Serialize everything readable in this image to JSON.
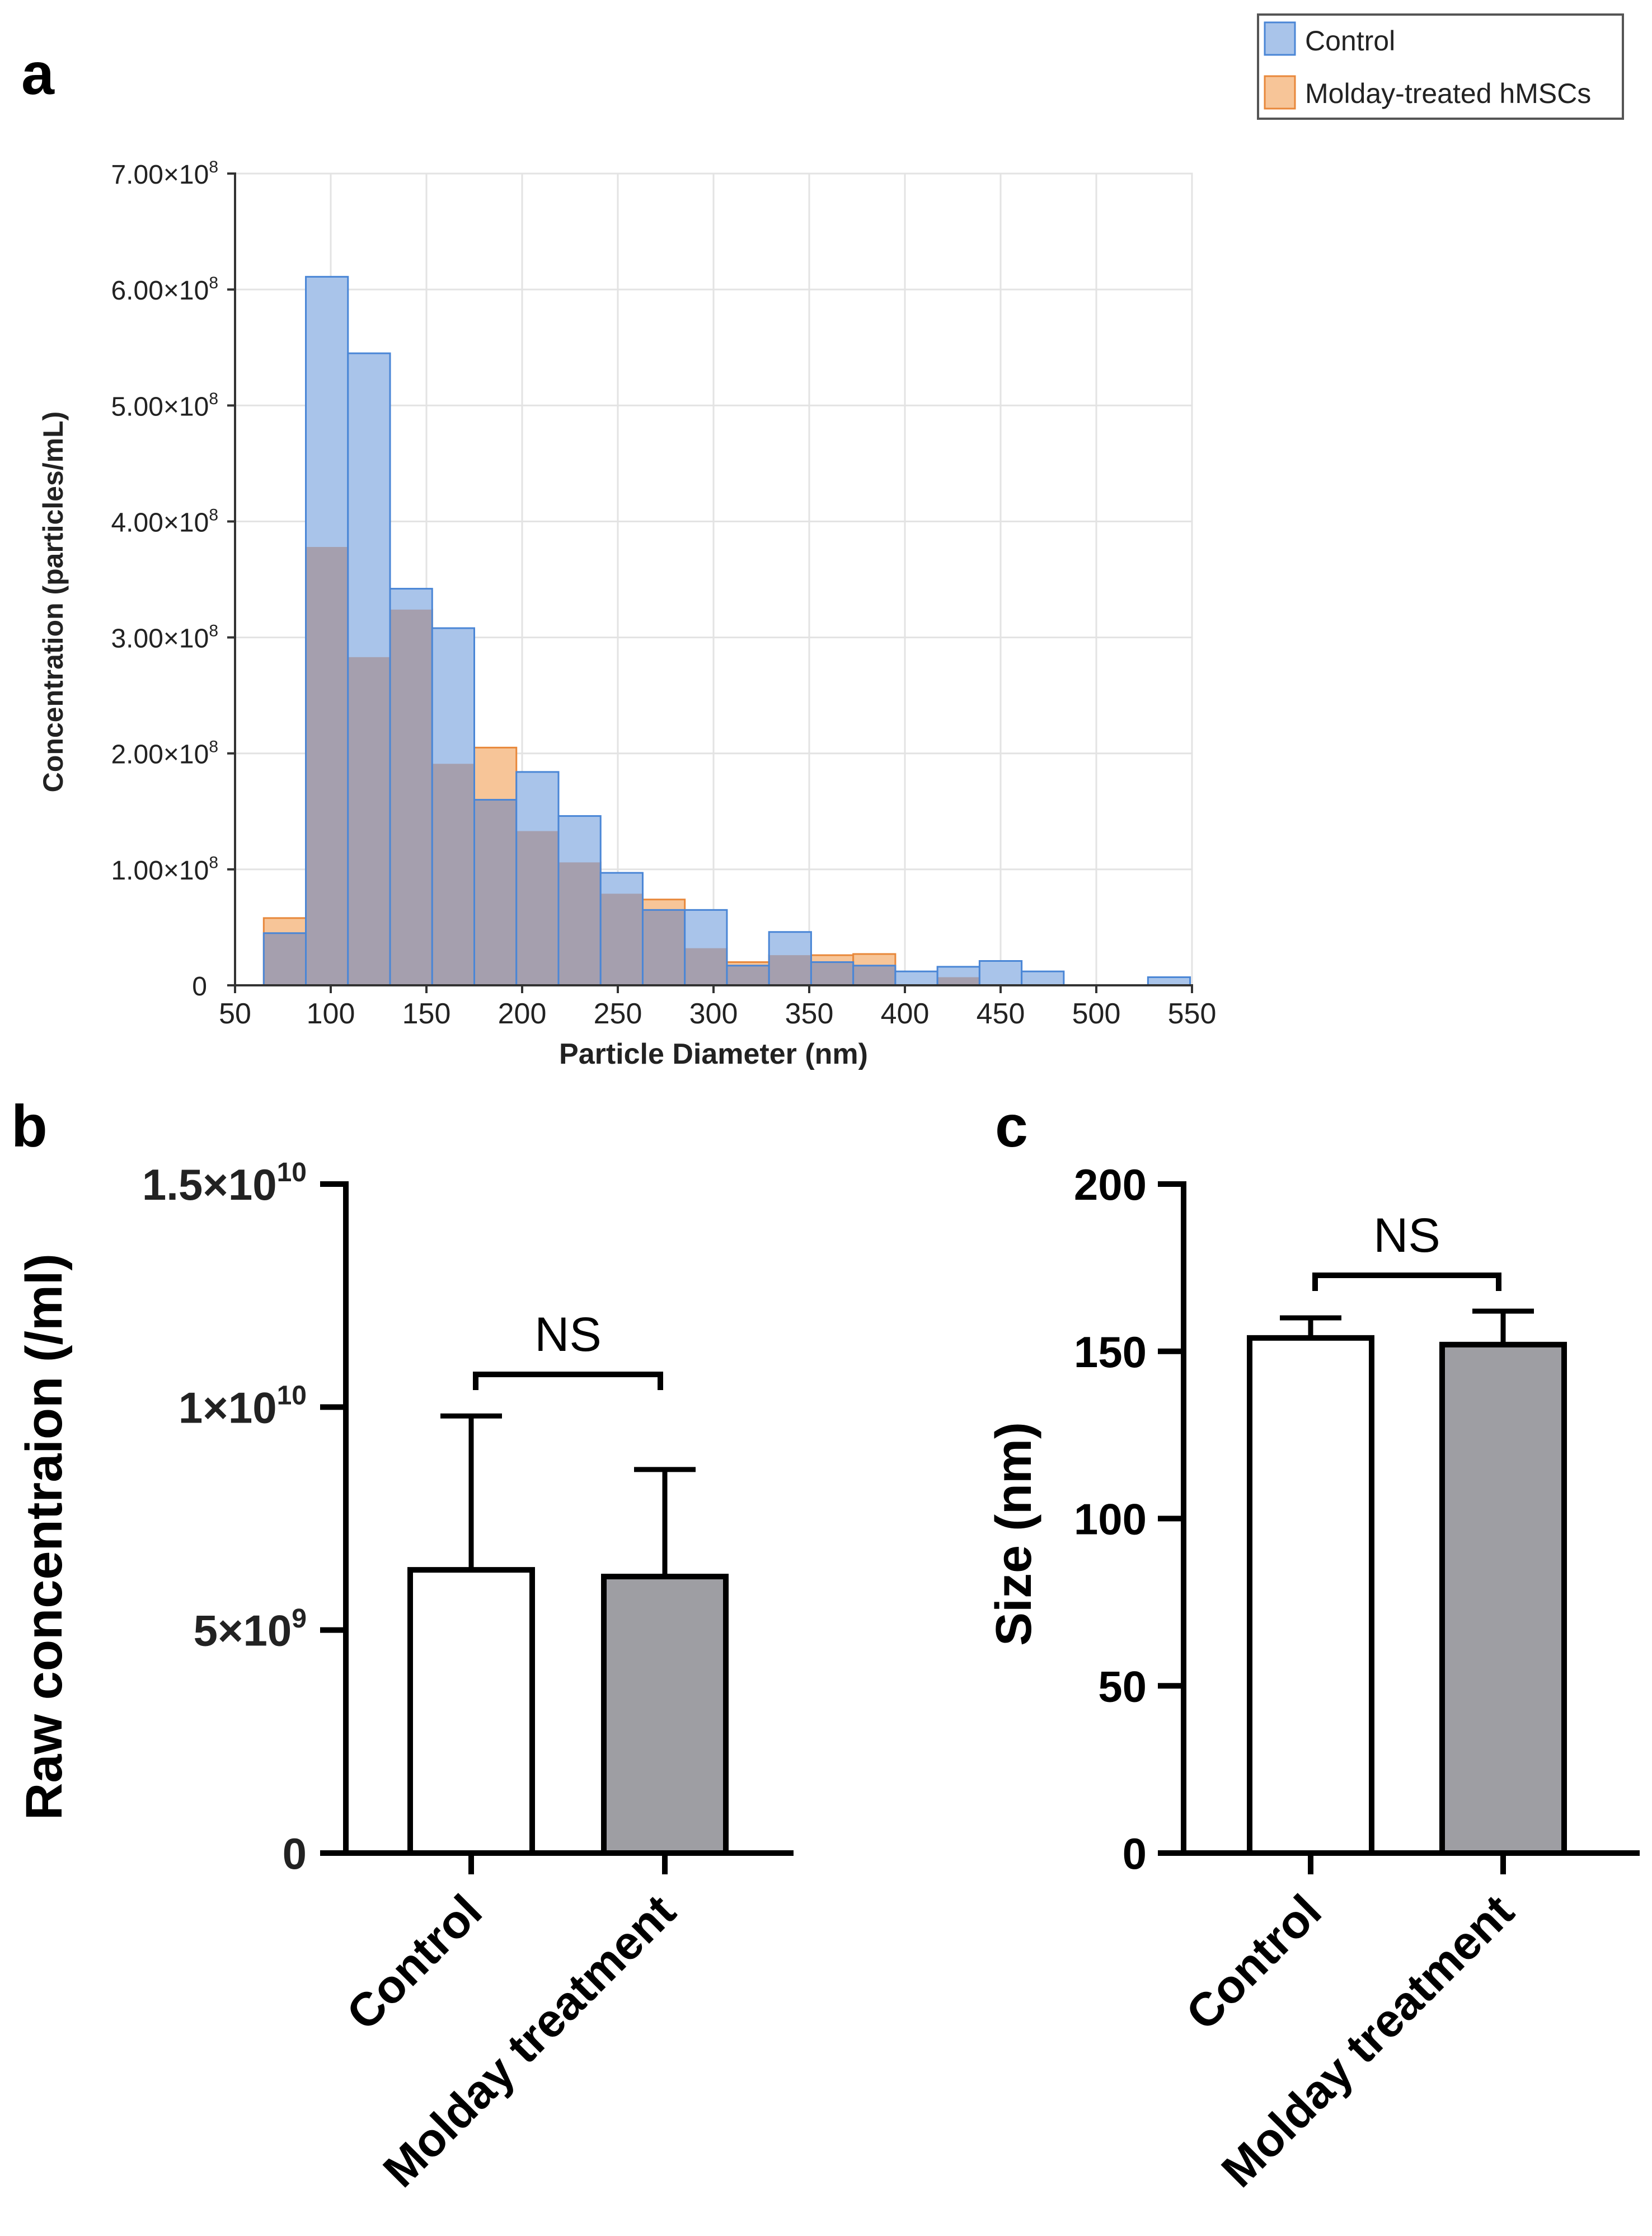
{
  "panel_labels": {
    "a": "a",
    "b": "b",
    "c": "c"
  },
  "colors": {
    "control_fill": "#a9c4ea",
    "control_stroke": "#4a86d6",
    "molday_fill": "#f7c598",
    "molday_stroke": "#e8883b",
    "overlap_fill": "#a59fae",
    "grid": "#e3e3e3",
    "bar_gray": "#9e9ea3",
    "axis": "#000000"
  },
  "chart_data": [
    {
      "id": "a",
      "type": "bar",
      "subtype": "overlaid-histogram",
      "title": "",
      "xlabel": "Particle Diameter (nm)",
      "ylabel": "Concentration (particles/mL)",
      "xlim": [
        50,
        550
      ],
      "ylim": [
        0,
        700000000
      ],
      "grid": true,
      "legend_position": "top-right",
      "x_ticks": [
        {
          "value": 50,
          "label": "50"
        },
        {
          "value": 100,
          "label": "100"
        },
        {
          "value": 150,
          "label": "150"
        },
        {
          "value": 200,
          "label": "200"
        },
        {
          "value": 250,
          "label": "250"
        },
        {
          "value": 300,
          "label": "300"
        },
        {
          "value": 350,
          "label": "350"
        },
        {
          "value": 400,
          "label": "400"
        },
        {
          "value": 450,
          "label": "450"
        },
        {
          "value": 500,
          "label": "500"
        },
        {
          "value": 550,
          "label": "550"
        }
      ],
      "y_ticks": [
        {
          "value": 0,
          "base": "0",
          "exp": ""
        },
        {
          "value": 100000000,
          "base": "1.00×10",
          "exp": "8"
        },
        {
          "value": 200000000,
          "base": "2.00×10",
          "exp": "8"
        },
        {
          "value": 300000000,
          "base": "3.00×10",
          "exp": "8"
        },
        {
          "value": 400000000,
          "base": "4.00×10",
          "exp": "8"
        },
        {
          "value": 500000000,
          "base": "5.00×10",
          "exp": "8"
        },
        {
          "value": 600000000,
          "base": "6.00×10",
          "exp": "8"
        },
        {
          "value": 700000000,
          "base": "7.00×10",
          "exp": "8"
        }
      ],
      "bin_width": 22,
      "bin_starts": [
        65,
        87,
        109,
        131,
        153,
        175,
        197,
        219,
        241,
        263,
        285,
        307,
        329,
        351,
        373,
        395,
        417,
        439,
        461,
        483,
        505,
        527
      ],
      "series": [
        {
          "name": "Control",
          "values": [
            45000000,
            611000000,
            545000000,
            342000000,
            308000000,
            160000000,
            184000000,
            146000000,
            97000000,
            65000000,
            65000000,
            17000000,
            46000000,
            20000000,
            17000000,
            12000000,
            16000000,
            21000000,
            12000000,
            0,
            0,
            7000000
          ]
        },
        {
          "name": "Molday-treated hMSCs",
          "values": [
            58000000,
            378000000,
            283000000,
            324000000,
            191000000,
            205000000,
            133000000,
            106000000,
            79000000,
            74000000,
            32000000,
            20000000,
            26000000,
            26000000,
            27000000,
            0,
            7000000,
            0,
            0,
            0,
            0,
            0
          ]
        }
      ]
    },
    {
      "id": "b",
      "type": "bar",
      "title": "",
      "xlabel": "",
      "ylabel": "Raw concentraion (/ml)",
      "ylim": [
        0,
        15000000000
      ],
      "grid": false,
      "categories": [
        "Control",
        "Molday treatment"
      ],
      "values": [
        6350000000,
        6200000000
      ],
      "error_upper": [
        9800000000,
        8600000000
      ],
      "significance": "NS",
      "y_ticks": [
        {
          "value": 0,
          "base": "0",
          "exp": ""
        },
        {
          "value": 5000000000,
          "base": "5×10",
          "exp": "9"
        },
        {
          "value": 10000000000,
          "base": "1×10",
          "exp": "10"
        },
        {
          "value": 15000000000,
          "base": "1.5×10",
          "exp": "10"
        }
      ]
    },
    {
      "id": "c",
      "type": "bar",
      "title": "",
      "xlabel": "",
      "ylabel": "Size (nm)",
      "ylim": [
        0,
        200
      ],
      "grid": false,
      "categories": [
        "Control",
        "Molday treatment"
      ],
      "values": [
        154,
        152
      ],
      "error_upper": [
        160,
        162
      ],
      "significance": "NS",
      "y_ticks": [
        {
          "value": 0,
          "label": "0"
        },
        {
          "value": 50,
          "label": "50"
        },
        {
          "value": 100,
          "label": "100"
        },
        {
          "value": 150,
          "label": "150"
        },
        {
          "value": 200,
          "label": "200"
        }
      ]
    }
  ]
}
